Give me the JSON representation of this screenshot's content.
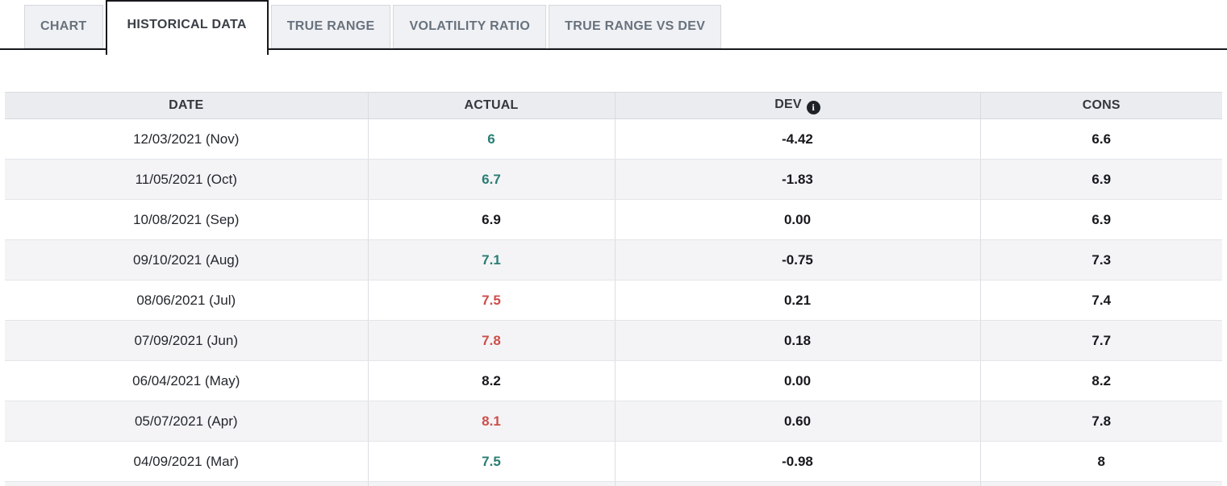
{
  "tabs": [
    {
      "label": "CHART",
      "active": false
    },
    {
      "label": "HISTORICAL DATA",
      "active": true
    },
    {
      "label": "TRUE RANGE",
      "active": false
    },
    {
      "label": "VOLATILITY RATIO",
      "active": false
    },
    {
      "label": "TRUE RANGE VS DEV",
      "active": false
    }
  ],
  "table": {
    "columns": [
      {
        "id": "date",
        "label": "DATE",
        "info": false
      },
      {
        "id": "actual",
        "label": "ACTUAL",
        "info": false
      },
      {
        "id": "dev",
        "label": "DEV",
        "info": true
      },
      {
        "id": "cons",
        "label": "CONS",
        "info": false
      }
    ],
    "info_icon_glyph": "i",
    "rows": [
      {
        "date": "12/03/2021 (Nov)",
        "actual": "6",
        "actual_color": "teal",
        "dev": "-4.42",
        "cons": "6.6"
      },
      {
        "date": "11/05/2021 (Oct)",
        "actual": "6.7",
        "actual_color": "teal",
        "dev": "-1.83",
        "cons": "6.9"
      },
      {
        "date": "10/08/2021 (Sep)",
        "actual": "6.9",
        "actual_color": "neutral",
        "dev": "0.00",
        "cons": "6.9"
      },
      {
        "date": "09/10/2021 (Aug)",
        "actual": "7.1",
        "actual_color": "teal",
        "dev": "-0.75",
        "cons": "7.3"
      },
      {
        "date": "08/06/2021 (Jul)",
        "actual": "7.5",
        "actual_color": "red",
        "dev": "0.21",
        "cons": "7.4"
      },
      {
        "date": "07/09/2021 (Jun)",
        "actual": "7.8",
        "actual_color": "red",
        "dev": "0.18",
        "cons": "7.7"
      },
      {
        "date": "06/04/2021 (May)",
        "actual": "8.2",
        "actual_color": "neutral",
        "dev": "0.00",
        "cons": "8.2"
      },
      {
        "date": "05/07/2021 (Apr)",
        "actual": "8.1",
        "actual_color": "red",
        "dev": "0.60",
        "cons": "7.8"
      },
      {
        "date": "04/09/2021 (Mar)",
        "actual": "7.5",
        "actual_color": "teal",
        "dev": "-0.98",
        "cons": "8"
      }
    ]
  },
  "colors": {
    "actual_teal": "#2a7d73",
    "actual_red": "#cd4e49",
    "actual_neutral": "#17191d"
  }
}
